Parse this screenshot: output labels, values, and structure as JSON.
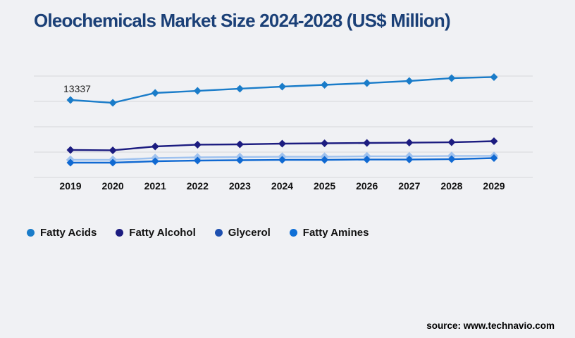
{
  "title": "Oleochemicals Market Size 2024-2028 (US$ Million)",
  "source": "source: www.technavio.com",
  "chart_data": {
    "type": "line",
    "title": "Oleochemicals Market Size 2024-2028 (US$ Million)",
    "xlabel": "",
    "ylabel": "US$ Million",
    "categories": [
      "2019",
      "2020",
      "2021",
      "2022",
      "2023",
      "2024",
      "2025",
      "2026",
      "2027",
      "2028",
      "2029"
    ],
    "series": [
      {
        "name": "Fatty Acids",
        "legend_color": "#1a7cc9",
        "line_color": "#1a7cc9",
        "values": [
          13337,
          12850,
          14550,
          14910,
          15280,
          15640,
          15945,
          16245,
          16610,
          17095,
          17280
        ]
      },
      {
        "name": "Fatty Alcohol",
        "legend_color": "#1c1c80",
        "line_color": "#1c1c80",
        "values": [
          4730,
          4670,
          5335,
          5640,
          5700,
          5820,
          5880,
          5940,
          6000,
          6060,
          6245
        ]
      },
      {
        "name": "Glycerol",
        "legend_color": "#1e50b0",
        "line_color": "#9fc2ef",
        "values": [
          3030,
          3030,
          3335,
          3455,
          3515,
          3575,
          3575,
          3640,
          3640,
          3700,
          3700
        ]
      },
      {
        "name": "Fatty Amines",
        "legend_color": "#0f6fd6",
        "line_color": "#1069d2",
        "values": [
          2545,
          2545,
          2790,
          2910,
          2970,
          3030,
          3030,
          3090,
          3090,
          3150,
          3335
        ]
      }
    ],
    "annotation": {
      "text": "13337",
      "series": "Fatty Acids",
      "category": "2019"
    },
    "grid": true,
    "gridline_count": 5,
    "legend_position": "bottom-left",
    "ylim": [
      0,
      17800
    ],
    "marker": "diamond"
  }
}
